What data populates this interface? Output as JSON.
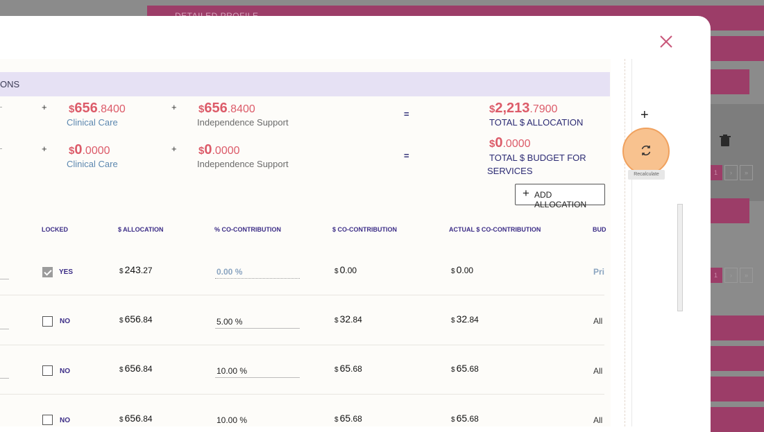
{
  "background": {
    "band_label": "DETAILED PROFILE",
    "pager": [
      "1",
      "›",
      "»"
    ]
  },
  "modal": {
    "section_title": "ONS",
    "row1": {
      "op1": "+",
      "amt1_cur": "$",
      "amt1_int": "656",
      "amt1_dec": ".8400",
      "amt1_label": "Clinical Care",
      "op2": "+",
      "amt2_cur": "$",
      "amt2_int": "656",
      "amt2_dec": ".8400",
      "amt2_label": "Independence Support",
      "eq": "=",
      "total_cur": "$",
      "total_int": "2,213",
      "total_dec": ".7900",
      "total_label": "TOTAL $ ALLOCATION"
    },
    "row2": {
      "op1": "+",
      "amt1_cur": "$",
      "amt1_int": "0",
      "amt1_dec": ".0000",
      "amt1_label": "Clinical Care",
      "op2": "+",
      "amt2_cur": "$",
      "amt2_int": "0",
      "amt2_dec": ".0000",
      "amt2_label": "Independence Support",
      "eq": "=",
      "total_cur": "$",
      "total_int": "0",
      "total_dec": ".0000",
      "total_label_1": "TOTAL $ BUDGET FOR",
      "total_label_2": "SERVICES"
    },
    "add_allocation_label": "ADD ALLOCATION",
    "table": {
      "headers": [
        "LOCKED",
        "$ ALLOCATION",
        "% CO-CONTRIBUTION",
        "$ CO-CONTRIBUTION",
        "ACTUAL $ CO-CONTRIBUTION",
        "BUD"
      ],
      "rows": [
        {
          "locked": true,
          "locked_label": "YES",
          "alloc_int": "243",
          "alloc_dec": ".27",
          "pct": "0.00 %",
          "co_int": "0",
          "co_dec": ".00",
          "actual_int": "0",
          "actual_dec": ".00",
          "budget": "Pri"
        },
        {
          "locked": false,
          "locked_label": "NO",
          "alloc_int": "656",
          "alloc_dec": ".84",
          "pct": "5.00 %",
          "co_int": "32",
          "co_dec": ".84",
          "actual_int": "32",
          "actual_dec": ".84",
          "budget": "All"
        },
        {
          "locked": false,
          "locked_label": "NO",
          "alloc_int": "656",
          "alloc_dec": ".84",
          "pct": "10.00 %",
          "co_int": "65",
          "co_dec": ".68",
          "actual_int": "65",
          "actual_dec": ".68",
          "budget": "All"
        },
        {
          "locked": false,
          "locked_label": "NO",
          "alloc_int": "656",
          "alloc_dec": ".84",
          "pct": "10.00 %",
          "co_int": "65",
          "co_dec": ".68",
          "actual_int": "65",
          "actual_dec": ".68",
          "budget": "All"
        }
      ],
      "currency": "$"
    },
    "sidebar": {
      "add_icon": "plus-icon",
      "recalc_icon": "refresh-icon",
      "recalc_tooltip": "Recalculate"
    }
  },
  "colors": {
    "accent_pink": "#9c3d68",
    "amount_red": "#dc5b69",
    "header_purple": "#3b2c86",
    "section_bg": "#e6e1f4",
    "highlight_orange": "#f8c28f"
  }
}
